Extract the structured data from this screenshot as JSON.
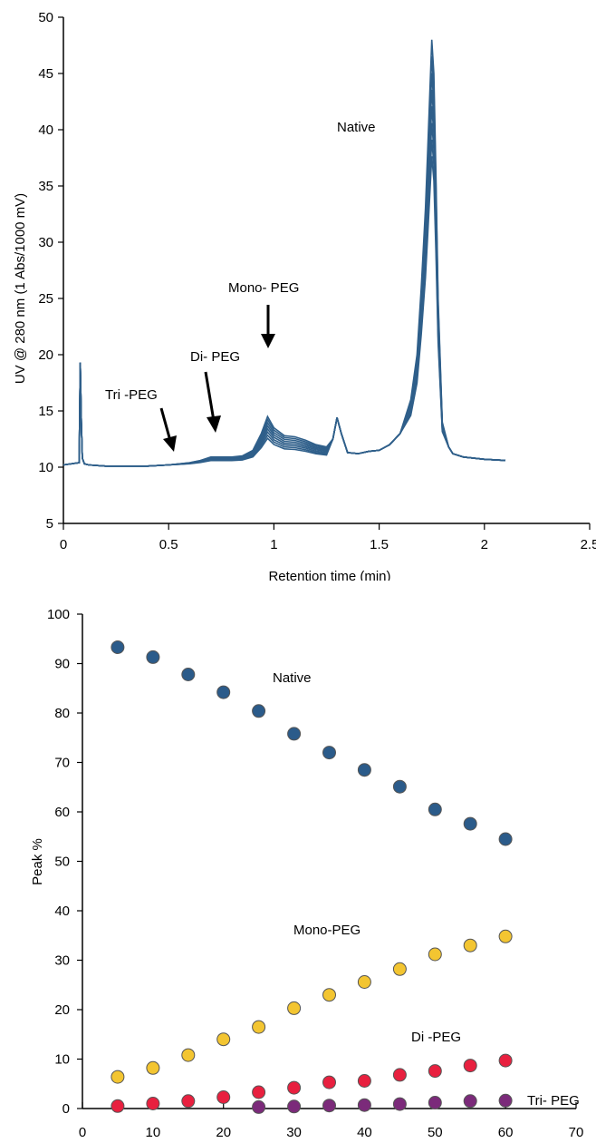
{
  "colors": {
    "trace": "#2f5f8a",
    "native": "#2b5b8a",
    "mono": "#f3c531",
    "di": "#e8203f",
    "tri": "#7b2a7a",
    "axis": "#000000"
  },
  "chart_data": [
    {
      "type": "line",
      "xlabel": "Retention time (min)",
      "ylabel": "UV @ 280 nm (1 Abs/1000 mV)",
      "xlim": [
        0,
        2.5
      ],
      "ylim": [
        5,
        50
      ],
      "x_ticks": [
        "0",
        "0.5",
        "1",
        "1.5",
        "2",
        "2.5"
      ],
      "y_ticks": [
        "5",
        "10",
        "15",
        "20",
        "25",
        "30",
        "35",
        "40",
        "45",
        "50"
      ],
      "grid": false,
      "annotations": [
        {
          "text": "Native"
        },
        {
          "text": "Mono- PEG"
        },
        {
          "text": "Di- PEG"
        },
        {
          "text": "Tri -PEG"
        }
      ],
      "base_trace": {
        "x": [
          0,
          0.075,
          0.08,
          0.085,
          0.09,
          0.1,
          0.12,
          0.2,
          0.3,
          0.4,
          0.5,
          0.55,
          0.6,
          0.65,
          0.7,
          0.75,
          0.8,
          0.85,
          0.9,
          0.94,
          0.97,
          1.0,
          1.05,
          1.1,
          1.15,
          1.2,
          1.25,
          1.28,
          1.3,
          1.32,
          1.35,
          1.4,
          1.45,
          1.5,
          1.55,
          1.6,
          1.65,
          1.68,
          1.7,
          1.72,
          1.73,
          1.74,
          1.75,
          1.76,
          1.77,
          1.78,
          1.8,
          1.83,
          1.85,
          1.9,
          1.95,
          2.0,
          2.05,
          2.1
        ],
        "y": [
          10.2,
          10.4,
          19.3,
          14.0,
          10.8,
          10.3,
          10.2,
          10.1,
          10.1,
          10.1,
          10.2,
          10.3,
          10.4,
          10.6,
          10.9,
          10.9,
          10.9,
          11.0,
          11.5,
          13.0,
          14.5,
          13.5,
          12.8,
          12.7,
          12.4,
          12.0,
          11.8,
          12.5,
          14.4,
          13.0,
          11.3,
          11.2,
          11.4,
          11.5,
          12.0,
          13.0,
          16.0,
          20.0,
          26.0,
          33.0,
          38.0,
          43.0,
          48.0,
          45.0,
          36.0,
          25.0,
          14.0,
          11.8,
          11.2,
          10.9,
          10.8,
          10.7,
          10.65,
          10.6
        ]
      },
      "overlays": 8
    },
    {
      "type": "scatter",
      "xlabel": "",
      "ylabel": "Peak %",
      "xlim": [
        0,
        70
      ],
      "ylim": [
        0,
        100
      ],
      "x_ticks": [
        "0",
        "10",
        "20",
        "30",
        "40",
        "50",
        "60",
        "70"
      ],
      "y_ticks": [
        "0",
        "10",
        "20",
        "30",
        "40",
        "50",
        "60",
        "70",
        "80",
        "90",
        "100"
      ],
      "grid": false,
      "series": [
        {
          "name": "Native",
          "x": [
            5,
            10,
            15,
            20,
            25,
            30,
            35,
            40,
            45,
            50,
            55,
            60
          ],
          "y": [
            93.3,
            91.3,
            87.8,
            84.2,
            80.4,
            75.8,
            72.0,
            68.5,
            65.1,
            60.5,
            57.6,
            54.5
          ]
        },
        {
          "name": "Mono-PEG",
          "x": [
            5,
            10,
            15,
            20,
            25,
            30,
            35,
            40,
            45,
            50,
            55,
            60
          ],
          "y": [
            6.4,
            8.2,
            10.8,
            14.0,
            16.5,
            20.3,
            23.0,
            25.6,
            28.2,
            31.2,
            33.0,
            34.8
          ]
        },
        {
          "name": "Di -PEG",
          "x": [
            5,
            10,
            15,
            20,
            25,
            30,
            35,
            40,
            45,
            50,
            55,
            60
          ],
          "y": [
            0.5,
            1.0,
            1.5,
            2.3,
            3.3,
            4.2,
            5.3,
            5.6,
            6.8,
            7.6,
            8.7,
            9.7
          ]
        },
        {
          "name": "Tri- PEG",
          "x": [
            25,
            30,
            35,
            40,
            45,
            50,
            55,
            60
          ],
          "y": [
            0.3,
            0.4,
            0.6,
            0.7,
            0.9,
            1.2,
            1.5,
            1.6
          ]
        }
      ]
    }
  ]
}
